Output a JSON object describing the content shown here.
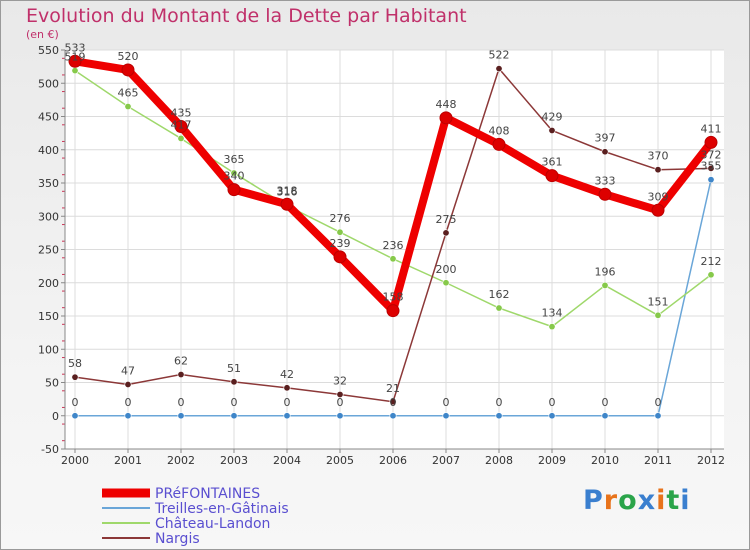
{
  "title": "Evolution du Montant de la Dette par Habitant",
  "subtitle": "(en €)",
  "logo": {
    "text": "Proxiti",
    "letter_colors": [
      "#3a7fcf",
      "#e8731b",
      "#2aa44a",
      "#3a7fcf",
      "#e8731b",
      "#2aa44a",
      "#3a7fcf"
    ]
  },
  "chart_data": {
    "type": "line",
    "title": "Evolution du Montant de la Dette par Habitant",
    "ylabel": "(en €)",
    "xlabel": "",
    "ylim": [
      -50,
      550
    ],
    "yticks": [
      -50,
      0,
      50,
      100,
      150,
      200,
      250,
      300,
      350,
      400,
      450,
      500,
      550
    ],
    "x": [
      "2000",
      "2001",
      "2002",
      "2003",
      "2004",
      "2005",
      "2006",
      "2007",
      "2008",
      "2009",
      "2010",
      "2011",
      "2012"
    ],
    "grid": true,
    "legend_position": "bottom-left",
    "series": [
      {
        "name": "PRéFONTAINES",
        "color": "#ee0000",
        "marker": "#dd0000",
        "width": "thick",
        "values": [
          533,
          520,
          435,
          340,
          318,
          239,
          158,
          448,
          408,
          361,
          333,
          309,
          411
        ]
      },
      {
        "name": "Treilles-en-Gâtinais",
        "color": "#6aa6d8",
        "marker": "#3f86c9",
        "width": "thin",
        "values": [
          0,
          0,
          0,
          0,
          0,
          0,
          0,
          0,
          0,
          0,
          0,
          0,
          355
        ]
      },
      {
        "name": "Château-Landon",
        "color": "#9fd86b",
        "marker": "#86c94a",
        "width": "thin",
        "values": [
          519,
          465,
          417,
          365,
          316,
          276,
          236,
          200,
          162,
          134,
          196,
          151,
          212
        ]
      },
      {
        "name": "Nargis",
        "color": "#8c3838",
        "marker": "#5a1f1f",
        "width": "thin",
        "values": [
          58,
          47,
          62,
          51,
          42,
          32,
          21,
          275,
          522,
          429,
          397,
          370,
          372
        ]
      }
    ]
  }
}
